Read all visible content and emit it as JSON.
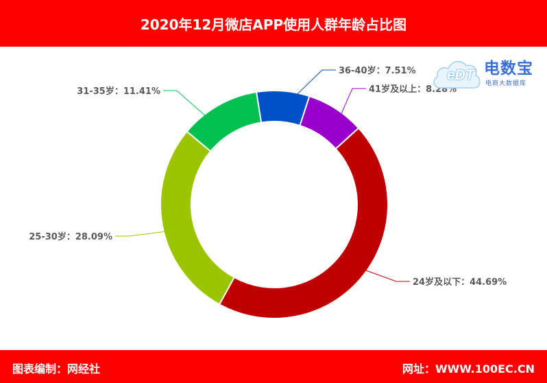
{
  "header": {
    "title": "2020年12月微店APP使用人群年龄占比图"
  },
  "footer": {
    "credit": "图表编制：网经社",
    "site": "网址：WWW.100EC.CN"
  },
  "logo": {
    "name": "电数宝",
    "subtitle": "电商大数据库",
    "mark": "eDT"
  },
  "colors": {
    "banner": "#ff0000",
    "label_text": "#595959"
  },
  "chart_data": {
    "type": "pie",
    "variant": "doughnut",
    "categories": [
      "24岁及以下",
      "25-30岁",
      "31-35岁",
      "36-40岁",
      "41岁及以上"
    ],
    "values": [
      44.69,
      28.09,
      11.41,
      7.51,
      8.28
    ],
    "unit": "%",
    "colors": [
      "#c00000",
      "#9dc400",
      "#00c050",
      "#0050c8",
      "#9900cc"
    ],
    "labels": [
      "24岁及以下：44.69%",
      "25-30岁：28.09%",
      "31-35岁：11.41%",
      "36-40岁：7.51%",
      "41岁及以上：8.28%"
    ],
    "start_category": "36-40岁",
    "direction": "clockwise",
    "legend": "none"
  }
}
